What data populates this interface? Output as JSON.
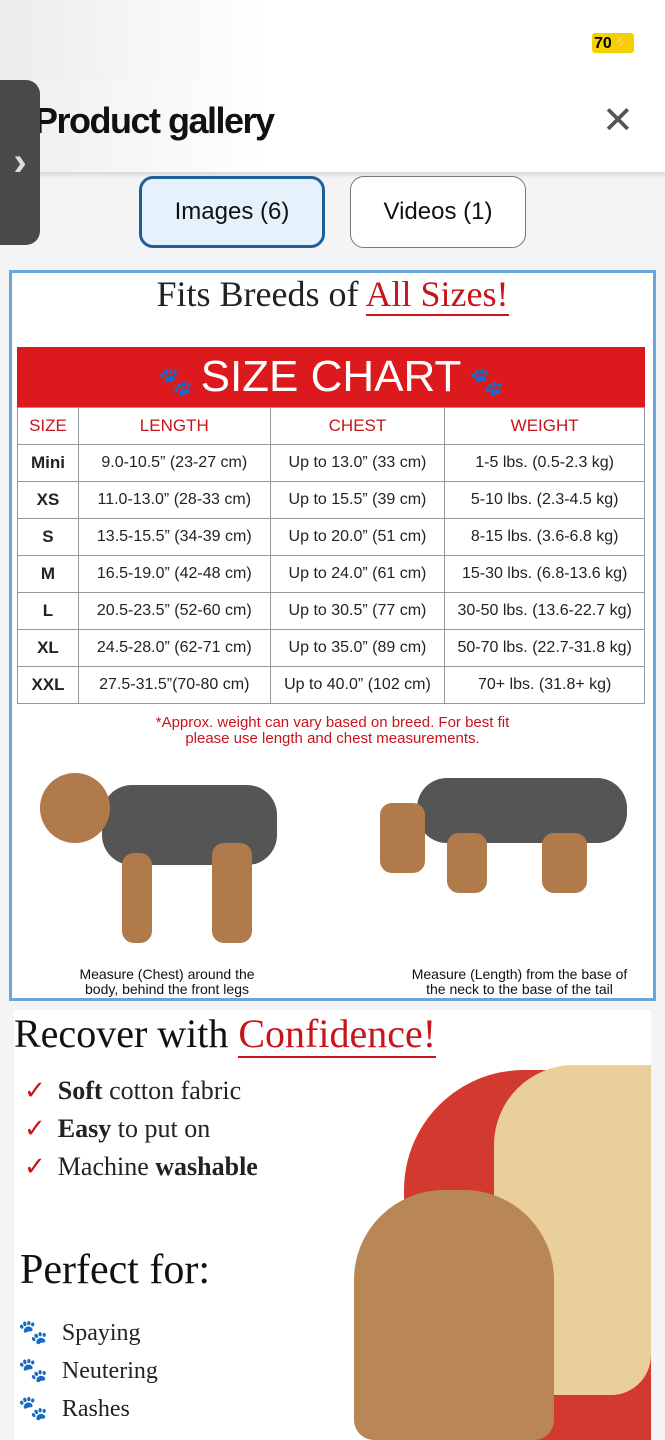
{
  "status": {
    "battery": "70"
  },
  "header": {
    "title": "Product gallery",
    "close_icon": "close-icon",
    "side_handle_icon": "chevron-right-icon"
  },
  "tabs": [
    {
      "label": "Images (6)",
      "selected": true
    },
    {
      "label": "Videos (1)",
      "selected": false
    }
  ],
  "size_image": {
    "headline_prefix": "Fits Breeds of ",
    "headline_emph": "All Sizes!",
    "banner": "SIZE CHART",
    "columns": [
      "SIZE",
      "LENGTH",
      "CHEST",
      "WEIGHT"
    ],
    "rows": [
      [
        "Mini",
        "9.0-10.5” (23-27 cm)",
        "Up to 13.0” (33 cm)",
        "1-5 lbs. (0.5-2.3 kg)"
      ],
      [
        "XS",
        "11.0-13.0” (28-33 cm)",
        "Up to 15.5” (39 cm)",
        "5-10 lbs. (2.3-4.5 kg)"
      ],
      [
        "S",
        "13.5-15.5” (34-39 cm)",
        "Up to 20.0” (51 cm)",
        "8-15 lbs. (3.6-6.8 kg)"
      ],
      [
        "M",
        "16.5-19.0” (42-48 cm)",
        "Up to 24.0” (61 cm)",
        "15-30 lbs. (6.8-13.6 kg)"
      ],
      [
        "L",
        "20.5-23.5” (52-60 cm)",
        "Up to 30.5” (77 cm)",
        "30-50 lbs. (13.6-22.7 kg)"
      ],
      [
        "XL",
        "24.5-28.0” (62-71 cm)",
        "Up to 35.0” (89 cm)",
        "50-70 lbs. (22.7-31.8 kg)"
      ],
      [
        "XXL",
        "27.5-31.5”(70-80 cm)",
        "Up to 40.0” (102 cm)",
        "70+ lbs. (31.8+ kg)"
      ]
    ],
    "note_line1": "*Approx. weight can vary based on breed. For best fit",
    "note_line2": "please use length and chest measurements.",
    "caption_left_1": "Measure (Chest) around the",
    "caption_left_2": "body, behind the front legs",
    "caption_right_1": "Measure (Length) from the base of",
    "caption_right_2": "the neck to the base of the tail"
  },
  "recover_image": {
    "headline_prefix": "Recover with ",
    "headline_emph": "Confidence!",
    "features": [
      [
        "Soft",
        " cotton fabric"
      ],
      [
        "Easy",
        " to put on"
      ],
      [
        "Machine ",
        "washable"
      ]
    ],
    "perfect_for": "Perfect for:",
    "uses": [
      "Spaying",
      "Neutering",
      "Rashes"
    ]
  },
  "colors": {
    "accent_red": "#dc1a1e",
    "tab_selected_border": "#1f5f9b"
  }
}
